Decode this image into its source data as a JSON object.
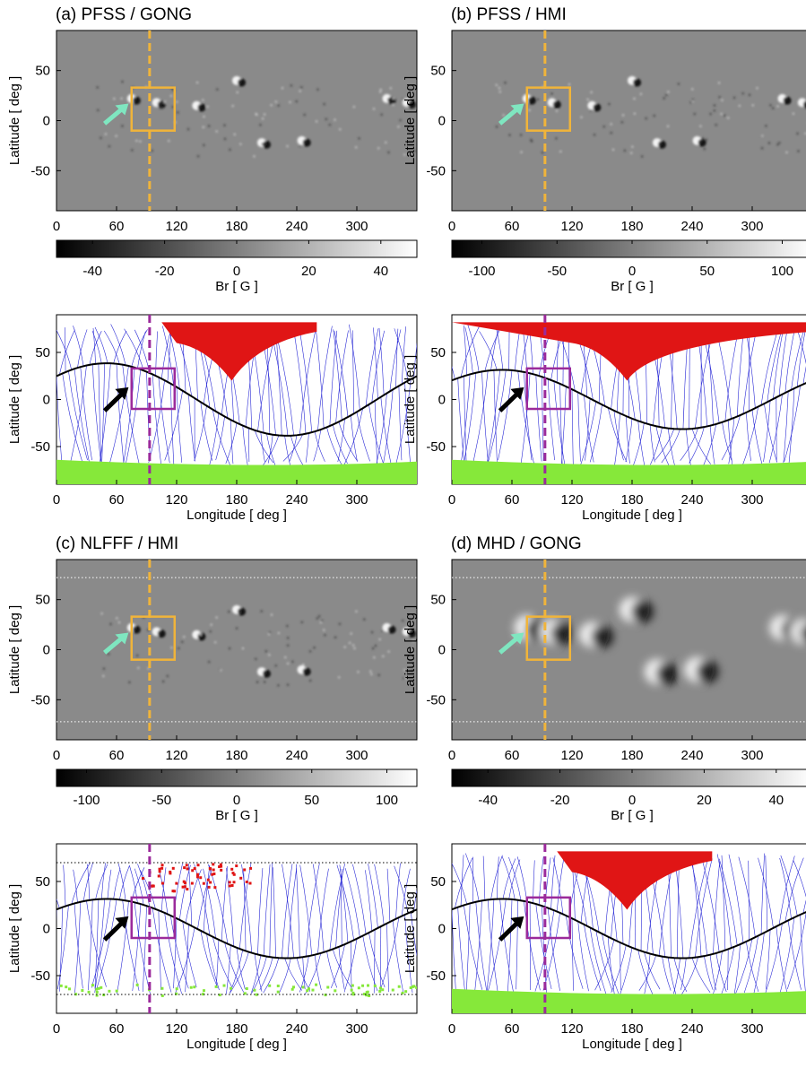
{
  "figure": {
    "panels": [
      {
        "id": "a",
        "title": "(a) PFSS / GONG",
        "map": {
          "ylabel": "Latitude  [ deg ]",
          "xticks": [
            "0",
            "60",
            "120",
            "180",
            "240",
            "300"
          ],
          "yticks": [
            "50",
            "0",
            "-50"
          ],
          "dotted_boundaries": false
        },
        "colorbar": {
          "label": "Br  [ G ]",
          "ticks": [
            "-40",
            "-20",
            "0",
            "20",
            "40"
          ],
          "range": [
            -50,
            50
          ]
        },
        "fieldlines": {
          "xlabel": "Longitude  [ deg ]",
          "ylabel": "Latitude  [ deg ]",
          "xticks": [
            "0",
            "60",
            "120",
            "180",
            "240",
            "300"
          ],
          "yticks": [
            "50",
            "0",
            "-50"
          ]
        }
      },
      {
        "id": "b",
        "title": "(b) PFSS / HMI",
        "map": {
          "ylabel": "Latitude  [ deg ]",
          "xticks": [
            "0",
            "60",
            "120",
            "180",
            "240",
            "300"
          ],
          "yticks": [
            "50",
            "0",
            "-50"
          ],
          "dotted_boundaries": false
        },
        "colorbar": {
          "label": "Br  [ G ]",
          "ticks": [
            "-100",
            "-50",
            "0",
            "50",
            "100"
          ],
          "range": [
            -120,
            120
          ]
        },
        "fieldlines": {
          "xlabel": "Longitude  [ deg ]",
          "ylabel": "Latitude  [ deg ]",
          "xticks": [
            "0",
            "60",
            "120",
            "180",
            "240",
            "300"
          ],
          "yticks": [
            "50",
            "0",
            "-50"
          ]
        }
      },
      {
        "id": "c",
        "title": "(c) NLFFF / HMI",
        "map": {
          "ylabel": "Latitude  [ deg ]",
          "xticks": [
            "0",
            "60",
            "120",
            "180",
            "240",
            "300"
          ],
          "yticks": [
            "50",
            "0",
            "-50"
          ],
          "dotted_boundaries": true
        },
        "colorbar": {
          "label": "Br  [ G ]",
          "ticks": [
            "-100",
            "-50",
            "0",
            "50",
            "100"
          ],
          "range": [
            -120,
            120
          ]
        },
        "fieldlines": {
          "xlabel": "Longitude  [ deg ]",
          "ylabel": "Latitude  [ deg ]",
          "xticks": [
            "0",
            "60",
            "120",
            "180",
            "240",
            "300"
          ],
          "yticks": [
            "50",
            "0",
            "-50"
          ]
        }
      },
      {
        "id": "d",
        "title": "(d) MHD / GONG",
        "map": {
          "ylabel": "Latitude  [ deg ]",
          "xticks": [
            "0",
            "60",
            "120",
            "180",
            "240",
            "300"
          ],
          "yticks": [
            "50",
            "0",
            "-50"
          ],
          "dotted_boundaries": true
        },
        "colorbar": {
          "label": "Br  [ G ]",
          "ticks": [
            "-40",
            "-20",
            "0",
            "20",
            "40"
          ],
          "range": [
            -50,
            50
          ]
        },
        "fieldlines": {
          "xlabel": "Longitude  [ deg ]",
          "ylabel": "Latitude  [ deg ]",
          "xticks": [
            "0",
            "60",
            "120",
            "180",
            "240",
            "300"
          ],
          "yticks": [
            "50",
            "0",
            "-50"
          ]
        }
      }
    ],
    "colors": {
      "highlight_box_map": "#f0b43a",
      "highlight_box_fieldlines": "#9b2a9b",
      "arrow_map": "#7fe6c0",
      "arrow_fieldlines": "#000000",
      "fieldline": "#2b2bd6",
      "open_positive": "#e01515",
      "open_negative": "#86e83a",
      "neutral_line": "#000000",
      "map_background": "#8a8a8a"
    }
  }
}
